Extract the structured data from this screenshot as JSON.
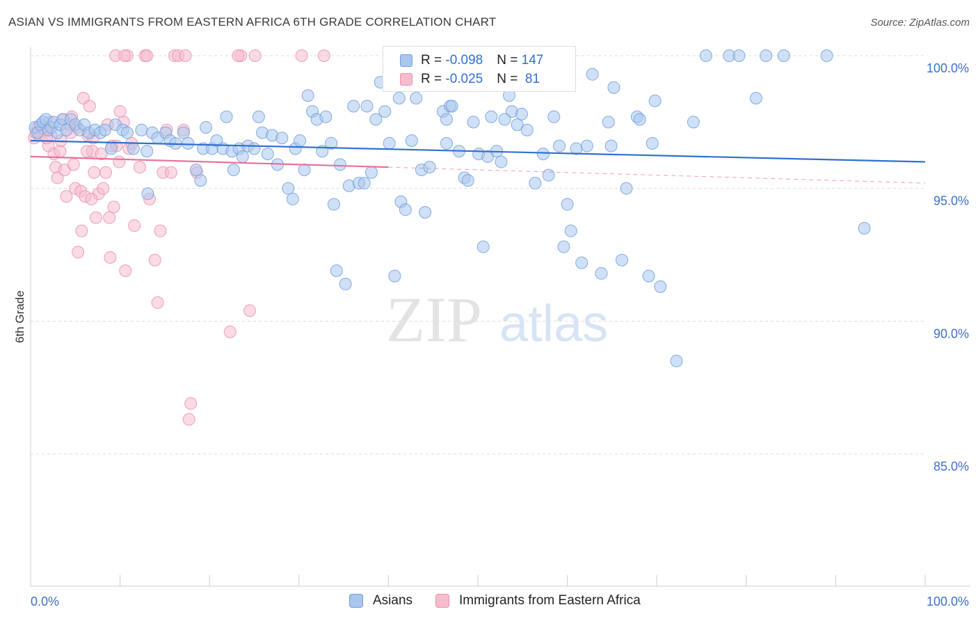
{
  "title": "ASIAN VS IMMIGRANTS FROM EASTERN AFRICA 6TH GRADE CORRELATION CHART",
  "source": "Source: ZipAtlas.com",
  "watermark": {
    "zip": "ZIP",
    "atlas": "atlas"
  },
  "colors": {
    "asian_fill": "#a9c6ee",
    "asian_stroke": "#6f9fdc",
    "asian_line": "#2f6fd0",
    "africa_fill": "#f6bccd",
    "africa_stroke": "#ea8fab",
    "africa_line": "#e8709a",
    "grid": "#dcdcdc",
    "axis_label": "#3d6fc8"
  },
  "legend": {
    "row1": {
      "r_label": "R = ",
      "r_value": "-0.098",
      "n_label": "N = ",
      "n_value": "147"
    },
    "row2": {
      "r_label": "R = ",
      "r_value": "-0.025",
      "n_label": "N = ",
      "n_value": " 81"
    }
  },
  "bottom_legend": {
    "asians": "Asians",
    "africa": "Immigrants from Eastern Africa"
  },
  "chart_data": {
    "type": "scatter",
    "xlabel": "",
    "ylabel": "6th Grade",
    "xlim": [
      0,
      100
    ],
    "ylim": [
      80.5,
      100.5
    ],
    "x_tick_labels": {
      "left": "0.0%",
      "right": "100.0%"
    },
    "y_ticks": [
      {
        "value": 100,
        "label": "100.0%"
      },
      {
        "value": 95,
        "label": "95.0%"
      },
      {
        "value": 90,
        "label": "90.0%"
      },
      {
        "value": 85,
        "label": "85.0%"
      }
    ],
    "grid": true,
    "series": [
      {
        "name": "Asians",
        "trend": {
          "x0": 0,
          "y0": 96.8,
          "x1": 100,
          "y1": 96.0,
          "solid_until": 100
        },
        "points": [
          [
            0.5,
            97.3
          ],
          [
            0.8,
            97.1
          ],
          [
            1.1,
            97.4
          ],
          [
            1.4,
            97.5
          ],
          [
            1.7,
            97.6
          ],
          [
            2.0,
            97.2
          ],
          [
            2.3,
            97.3
          ],
          [
            2.6,
            97.5
          ],
          [
            3.0,
            97.1
          ],
          [
            3.3,
            97.4
          ],
          [
            3.6,
            97.6
          ],
          [
            4.0,
            97.2
          ],
          [
            4.5,
            97.6
          ],
          [
            5.0,
            97.4
          ],
          [
            5.5,
            97.2
          ],
          [
            6.0,
            97.4
          ],
          [
            6.5,
            97.1
          ],
          [
            7.2,
            97.2
          ],
          [
            7.8,
            97.1
          ],
          [
            8.3,
            97.2
          ],
          [
            9.0,
            96.5
          ],
          [
            9.5,
            97.4
          ],
          [
            10.3,
            97.2
          ],
          [
            10.8,
            97.1
          ],
          [
            11.5,
            96.5
          ],
          [
            12.4,
            97.2
          ],
          [
            13.0,
            96.4
          ],
          [
            13.6,
            97.1
          ],
          [
            14.2,
            96.9
          ],
          [
            15.1,
            97.1
          ],
          [
            15.6,
            96.8
          ],
          [
            16.2,
            96.7
          ],
          [
            17.1,
            97.1
          ],
          [
            17.6,
            96.7
          ],
          [
            18.5,
            95.7
          ],
          [
            19.3,
            96.5
          ],
          [
            19.6,
            97.3
          ],
          [
            20.3,
            96.5
          ],
          [
            20.8,
            96.8
          ],
          [
            21.5,
            96.5
          ],
          [
            21.9,
            97.7
          ],
          [
            22.5,
            96.4
          ],
          [
            22.7,
            95.7
          ],
          [
            23.3,
            96.5
          ],
          [
            23.7,
            96.2
          ],
          [
            24.3,
            96.6
          ],
          [
            25.0,
            96.5
          ],
          [
            25.5,
            97.7
          ],
          [
            25.9,
            97.1
          ],
          [
            26.5,
            96.3
          ],
          [
            27.0,
            97.0
          ],
          [
            27.6,
            95.9
          ],
          [
            28.1,
            96.9
          ],
          [
            28.8,
            95.0
          ],
          [
            29.3,
            94.6
          ],
          [
            29.6,
            96.5
          ],
          [
            30.1,
            96.8
          ],
          [
            30.6,
            95.7
          ],
          [
            31.0,
            98.5
          ],
          [
            31.5,
            97.9
          ],
          [
            32.0,
            97.6
          ],
          [
            32.6,
            96.4
          ],
          [
            33.0,
            97.7
          ],
          [
            33.6,
            96.7
          ],
          [
            34.2,
            91.9
          ],
          [
            34.6,
            95.9
          ],
          [
            35.2,
            91.4
          ],
          [
            35.6,
            95.1
          ],
          [
            36.1,
            98.1
          ],
          [
            36.7,
            95.2
          ],
          [
            37.3,
            95.2
          ],
          [
            37.6,
            98.1
          ],
          [
            38.1,
            95.6
          ],
          [
            38.6,
            97.6
          ],
          [
            39.1,
            99.0
          ],
          [
            39.6,
            97.9
          ],
          [
            40.1,
            96.7
          ],
          [
            40.7,
            91.7
          ],
          [
            41.2,
            98.4
          ],
          [
            41.4,
            94.5
          ],
          [
            41.9,
            94.2
          ],
          [
            42.6,
            96.8
          ],
          [
            43.1,
            98.4
          ],
          [
            43.7,
            95.7
          ],
          [
            44.1,
            94.1
          ],
          [
            44.6,
            95.8
          ],
          [
            45.1,
            99.0
          ],
          [
            46.1,
            97.9
          ],
          [
            46.5,
            97.6
          ],
          [
            46.9,
            98.1
          ],
          [
            47.1,
            98.1
          ],
          [
            47.9,
            96.4
          ],
          [
            48.5,
            95.4
          ],
          [
            48.9,
            95.3
          ],
          [
            49.5,
            97.5
          ],
          [
            50.1,
            96.3
          ],
          [
            50.6,
            92.8
          ],
          [
            51.1,
            96.2
          ],
          [
            51.5,
            97.7
          ],
          [
            52.1,
            96.4
          ],
          [
            52.6,
            96.0
          ],
          [
            53.5,
            98.5
          ],
          [
            53.8,
            97.9
          ],
          [
            54.4,
            97.4
          ],
          [
            54.9,
            97.8
          ],
          [
            55.5,
            97.2
          ],
          [
            56.4,
            95.2
          ],
          [
            56.9,
            98.9
          ],
          [
            57.3,
            96.3
          ],
          [
            57.9,
            95.5
          ],
          [
            58.5,
            97.7
          ],
          [
            59.1,
            96.6
          ],
          [
            59.6,
            92.8
          ],
          [
            60.0,
            94.4
          ],
          [
            60.4,
            93.4
          ],
          [
            61.0,
            96.5
          ],
          [
            61.6,
            92.2
          ],
          [
            62.2,
            96.6
          ],
          [
            62.8,
            99.3
          ],
          [
            63.8,
            91.8
          ],
          [
            64.6,
            97.5
          ],
          [
            64.9,
            96.6
          ],
          [
            65.2,
            98.8
          ],
          [
            66.1,
            92.3
          ],
          [
            66.6,
            95.0
          ],
          [
            67.8,
            97.7
          ],
          [
            68.1,
            97.6
          ],
          [
            69.1,
            91.7
          ],
          [
            69.5,
            96.7
          ],
          [
            69.8,
            98.3
          ],
          [
            70.4,
            91.3
          ],
          [
            72.2,
            88.5
          ],
          [
            74.1,
            97.5
          ],
          [
            75.5,
            100.0
          ],
          [
            78.1,
            100.0
          ],
          [
            79.2,
            100.0
          ],
          [
            81.1,
            98.4
          ],
          [
            82.2,
            100.0
          ],
          [
            84.2,
            100.0
          ],
          [
            89.0,
            100.0
          ],
          [
            93.2,
            93.5
          ],
          [
            43.9,
            99.1
          ],
          [
            53.0,
            97.6
          ],
          [
            13.1,
            94.8
          ],
          [
            19.0,
            95.3
          ],
          [
            33.9,
            94.4
          ],
          [
            46.5,
            96.7
          ]
        ]
      },
      {
        "name": "Immigrants from Eastern Africa",
        "trend": {
          "x0": 0,
          "y0": 96.2,
          "x1": 100,
          "y1": 95.2,
          "solid_until": 40
        },
        "points": [
          [
            0.4,
            96.9
          ],
          [
            0.6,
            97.1
          ],
          [
            0.8,
            97.3
          ],
          [
            1.0,
            97.0
          ],
          [
            1.3,
            97.3
          ],
          [
            1.6,
            97.2
          ],
          [
            2.0,
            96.6
          ],
          [
            2.3,
            97.0
          ],
          [
            2.6,
            96.3
          ],
          [
            2.8,
            95.8
          ],
          [
            3.0,
            95.4
          ],
          [
            3.3,
            96.4
          ],
          [
            3.6,
            97.6
          ],
          [
            3.8,
            95.7
          ],
          [
            4.0,
            94.7
          ],
          [
            4.3,
            97.4
          ],
          [
            4.5,
            97.1
          ],
          [
            4.8,
            95.9
          ],
          [
            5.0,
            95.0
          ],
          [
            5.3,
            92.6
          ],
          [
            5.6,
            94.9
          ],
          [
            5.9,
            98.4
          ],
          [
            6.1,
            94.7
          ],
          [
            6.4,
            97.0
          ],
          [
            6.6,
            98.1
          ],
          [
            6.9,
            96.4
          ],
          [
            7.1,
            95.6
          ],
          [
            7.3,
            93.9
          ],
          [
            7.6,
            94.8
          ],
          [
            7.9,
            96.3
          ],
          [
            8.1,
            95.0
          ],
          [
            8.4,
            95.6
          ],
          [
            8.6,
            97.4
          ],
          [
            8.9,
            92.4
          ],
          [
            9.1,
            96.6
          ],
          [
            9.3,
            94.3
          ],
          [
            9.6,
            96.6
          ],
          [
            9.9,
            96.0
          ],
          [
            10.0,
            97.9
          ],
          [
            10.4,
            97.5
          ],
          [
            10.6,
            91.9
          ],
          [
            11.0,
            96.5
          ],
          [
            11.6,
            93.6
          ],
          [
            12.8,
            100.0
          ],
          [
            13.3,
            94.6
          ],
          [
            13.9,
            92.3
          ],
          [
            14.2,
            90.7
          ],
          [
            14.5,
            93.4
          ],
          [
            14.8,
            95.6
          ],
          [
            15.2,
            97.2
          ],
          [
            15.7,
            95.6
          ],
          [
            16.1,
            100.0
          ],
          [
            17.1,
            97.2
          ],
          [
            17.9,
            86.9
          ],
          [
            17.7,
            86.3
          ],
          [
            22.3,
            89.6
          ],
          [
            23.5,
            100.0
          ],
          [
            24.5,
            90.4
          ],
          [
            25.1,
            100.0
          ],
          [
            30.3,
            100.0
          ],
          [
            32.8,
            100.0
          ],
          [
            9.5,
            100.0
          ],
          [
            10.8,
            100.0
          ],
          [
            13.0,
            100.0
          ],
          [
            16.5,
            100.0
          ],
          [
            17.3,
            100.0
          ],
          [
            23.2,
            100.0
          ],
          [
            7.0,
            96.9
          ],
          [
            6.3,
            96.4
          ],
          [
            4.6,
            97.7
          ],
          [
            5.2,
            97.3
          ],
          [
            3.4,
            96.8
          ],
          [
            2.2,
            97.5
          ],
          [
            1.8,
            96.9
          ],
          [
            11.3,
            96.7
          ],
          [
            12.2,
            95.8
          ],
          [
            8.8,
            93.9
          ],
          [
            6.8,
            94.6
          ],
          [
            5.7,
            93.4
          ],
          [
            10.5,
            100.0
          ],
          [
            18.6,
            95.6
          ]
        ]
      }
    ]
  }
}
